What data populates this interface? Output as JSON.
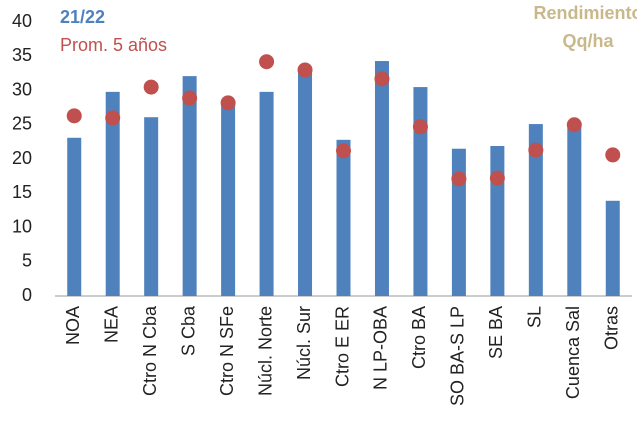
{
  "chart_data": {
    "type": "bar",
    "title": [
      "Rendimiento",
      "Qq/ha"
    ],
    "categories": [
      "NOA",
      "NEA",
      "Ctro N Cba",
      "S Cba",
      "Ctro N SFe",
      "Núcl. Norte",
      "Núcl. Sur",
      "Ctro E ER",
      "N LP-OBA",
      "Ctro BA",
      "SO BA-S LP",
      "SE BA",
      "SL",
      "Cuenca Sal",
      "Otras"
    ],
    "series": [
      {
        "name": "21/22",
        "color": "#4f81bd",
        "mark": "bar",
        "values": [
          23.1,
          29.8,
          26.1,
          32.1,
          28.5,
          29.8,
          33.3,
          22.8,
          34.3,
          30.5,
          21.5,
          21.9,
          25.1,
          25.3,
          13.9
        ]
      },
      {
        "name": "Prom. 5 años",
        "color": "#c0504d",
        "mark": "dot",
        "values": [
          26.3,
          26.0,
          30.5,
          28.9,
          28.2,
          34.2,
          33.0,
          21.2,
          31.7,
          24.7,
          17.1,
          17.2,
          21.3,
          25.0,
          20.6
        ]
      }
    ],
    "ylim": [
      0,
      40
    ],
    "yticks": [
      0,
      5,
      10,
      15,
      20,
      25,
      30,
      35,
      40
    ],
    "grid": false
  }
}
